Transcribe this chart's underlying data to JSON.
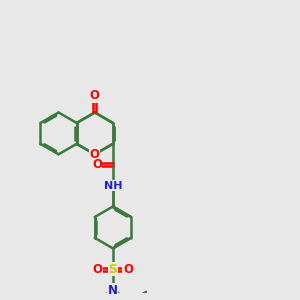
{
  "bg_color": "#e8e8e8",
  "bond_color": "#3a7a3a",
  "bond_width": 1.8,
  "atom_colors": {
    "O": "#ff0000",
    "N": "#2020cc",
    "S": "#cccc00",
    "C": "#3a7a3a"
  },
  "font_size_atom": 8.5,
  "dbo": 0.055
}
